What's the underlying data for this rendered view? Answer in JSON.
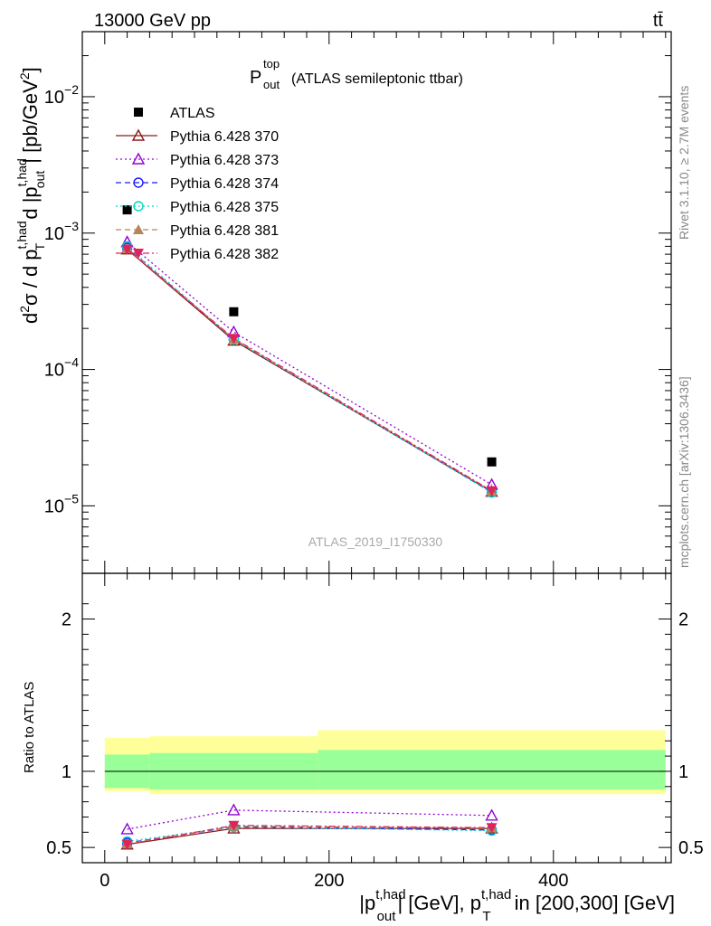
{
  "header": {
    "left": "13000 GeV pp",
    "right": "tt̄"
  },
  "plot_title": {
    "main": "P",
    "sup": "top",
    "sub": "out",
    "rest": "(ATLAS semileptonic ttbar)"
  },
  "side_labels": {
    "rivet": "Rivet 3.1.10, ≥ 2.7M events",
    "mcplots": "mcplots.cern.ch [arXiv:1306.3436]"
  },
  "watermark": "ATLAS_2019_I1750330",
  "ylabel_main": {
    "p1": "d",
    "p1sup": "2",
    "p2": "σ / d p",
    "p2sup": "t,had",
    "p2sub": "T",
    "p3": " d |p",
    "p3sup": "t,had",
    "p3sub": "out",
    "p4": "| [pb/GeV",
    "p4sup": "2",
    "p5": "]"
  },
  "ylabel_ratio": "Ratio to ATLAS",
  "xlabel": {
    "a": "|p",
    "asup": "t,had",
    "asub": "out",
    "b": "| [GeV], p",
    "bsup": "t,had",
    "bsub": "T",
    "c": " in [200,300] [GeV]"
  },
  "colors": {
    "data": "#000000",
    "s370": "#8b1a1a",
    "s373": "#9400d3",
    "s374": "#1a1aff",
    "s375": "#00d8c0",
    "s381": "#b8845a",
    "s382": "#e0245a",
    "band_inner": "#99ff99",
    "band_outer": "#ffff99"
  },
  "chart_data": [
    {
      "type": "scatter",
      "panel": "main",
      "yscale": "log",
      "xlim": [
        -20,
        505
      ],
      "ylim": [
        3.2e-06,
        0.03
      ],
      "x": [
        20,
        115,
        345
      ],
      "xerr_edges": [
        [
          0,
          40
        ],
        [
          40,
          190
        ],
        [
          190,
          500
        ]
      ],
      "yticks": [
        {
          "value": 1e-05,
          "base": "10",
          "exp": "−5"
        },
        {
          "value": 0.0001,
          "base": "10",
          "exp": "−4"
        },
        {
          "value": 0.001,
          "base": "10",
          "exp": "−3"
        },
        {
          "value": 0.01,
          "base": "10",
          "exp": "−2"
        }
      ],
      "series": [
        {
          "name": "ATLAS",
          "key": "data",
          "values": [
            0.00148,
            0.000265,
            2.1e-05
          ],
          "marker": "square",
          "line": "none"
        },
        {
          "name": "Pythia 6.428 370",
          "key": "s370",
          "values": [
            0.00076,
            0.000163,
            1.27e-05
          ],
          "marker": "triangle-open",
          "line": "solid"
        },
        {
          "name": "Pythia 6.428 373",
          "key": "s373",
          "values": [
            0.00086,
            0.000188,
            1.43e-05
          ],
          "marker": "triangle-open",
          "line": "dotted"
        },
        {
          "name": "Pythia 6.428 374",
          "key": "s374",
          "values": [
            0.00078,
            0.000166,
            1.26e-05
          ],
          "marker": "circle-open",
          "line": "dashed"
        },
        {
          "name": "Pythia 6.428 375",
          "key": "s375",
          "values": [
            0.0008,
            0.000166,
            1.25e-05
          ],
          "marker": "circle-open",
          "line": "dotted"
        },
        {
          "name": "Pythia 6.428 381",
          "key": "s381",
          "values": [
            0.00077,
            0.000167,
            1.28e-05
          ],
          "marker": "triangle-filled",
          "line": "dashed"
        },
        {
          "name": "Pythia 6.428 382",
          "key": "s382",
          "values": [
            0.00076,
            0.000169,
            1.29e-05
          ],
          "marker": "triangle-down-filled",
          "line": "dashdot"
        }
      ]
    },
    {
      "type": "scatter",
      "panel": "ratio",
      "xlim": [
        -20,
        505
      ],
      "ylim": [
        0.4,
        2.3
      ],
      "xticks": [
        0,
        200,
        400
      ],
      "yticks": [
        0.5,
        1,
        2
      ],
      "bands": [
        {
          "x0": 0,
          "x1": 40,
          "inner": [
            0.89,
            1.11
          ],
          "outer": [
            0.87,
            1.22
          ]
        },
        {
          "x0": 40,
          "x1": 190,
          "inner": [
            0.88,
            1.12
          ],
          "outer": [
            0.85,
            1.23
          ]
        },
        {
          "x0": 190,
          "x1": 500,
          "inner": [
            0.88,
            1.14
          ],
          "outer": [
            0.85,
            1.27
          ]
        }
      ],
      "x": [
        20,
        115,
        345
      ],
      "series": [
        {
          "name": "Pythia 6.428 370",
          "key": "s370",
          "values": [
            0.52,
            0.625,
            0.625
          ]
        },
        {
          "name": "Pythia 6.428 373",
          "key": "s373",
          "values": [
            0.62,
            0.745,
            0.71
          ]
        },
        {
          "name": "Pythia 6.428 374",
          "key": "s374",
          "values": [
            0.53,
            0.635,
            0.615
          ]
        },
        {
          "name": "Pythia 6.428 375",
          "key": "s375",
          "values": [
            0.54,
            0.635,
            0.61
          ]
        },
        {
          "name": "Pythia 6.428 381",
          "key": "s381",
          "values": [
            0.525,
            0.64,
            0.628
          ]
        },
        {
          "name": "Pythia 6.428 382",
          "key": "s382",
          "values": [
            0.52,
            0.645,
            0.63
          ]
        }
      ]
    }
  ]
}
